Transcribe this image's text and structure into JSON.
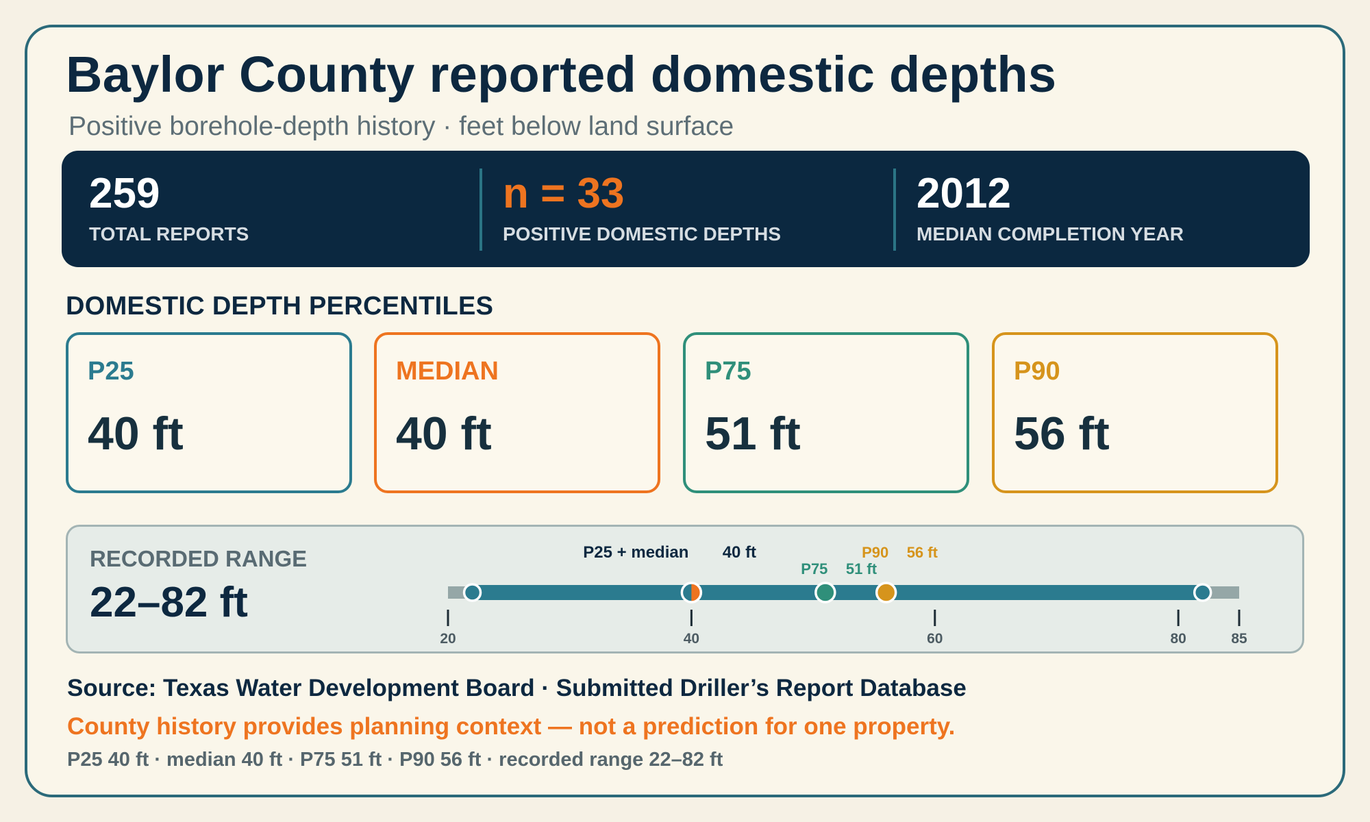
{
  "header": {
    "title": "Baylor County reported domestic depths",
    "subtitle": "Positive borehole-depth history · feet below land surface"
  },
  "stats": [
    {
      "value": "259",
      "label": "TOTAL REPORTS"
    },
    {
      "value": "n = 33",
      "label": "POSITIVE DOMESTIC DEPTHS"
    },
    {
      "value": "2012",
      "label": "MEDIAN COMPLETION YEAR"
    }
  ],
  "percentiles": {
    "section_title": "DOMESTIC DEPTH PERCENTILES",
    "cards": [
      {
        "label": "P25",
        "value": "40 ft",
        "color": "#2b7b8f"
      },
      {
        "label": "MEDIAN",
        "value": "40 ft",
        "color": "#ee7420"
      },
      {
        "label": "P75",
        "value": "51 ft",
        "color": "#2f8f7a"
      },
      {
        "label": "P90",
        "value": "56 ft",
        "color": "#d6941c"
      }
    ]
  },
  "range": {
    "label": "RECORDED RANGE",
    "value": "22–82 ft",
    "min": 22,
    "max": 82,
    "axis_min": 20,
    "axis_max": 85,
    "ticks": [
      20,
      40,
      60,
      80,
      85
    ],
    "markers": [
      {
        "label": "P25 + median",
        "value": 40,
        "text": "40 ft",
        "color": "#0d2840"
      },
      {
        "label": "P75",
        "value": 51,
        "text": "51 ft",
        "color": "#2f8f7a"
      },
      {
        "label": "P90",
        "value": 56,
        "text": "56 ft",
        "color": "#d6941c"
      }
    ],
    "colors": {
      "bar": "#2b7b8f",
      "track": "#95a7a7",
      "median": "#ee7420"
    }
  },
  "footer": {
    "source": "Source: Texas Water Development Board · Submitted Driller’s Report Database",
    "note": "County history provides planning context — not a prediction for one property.",
    "summary": "P25 40 ft · median 40 ft · P75 51 ft · P90 56 ft · recorded range 22–82 ft"
  }
}
